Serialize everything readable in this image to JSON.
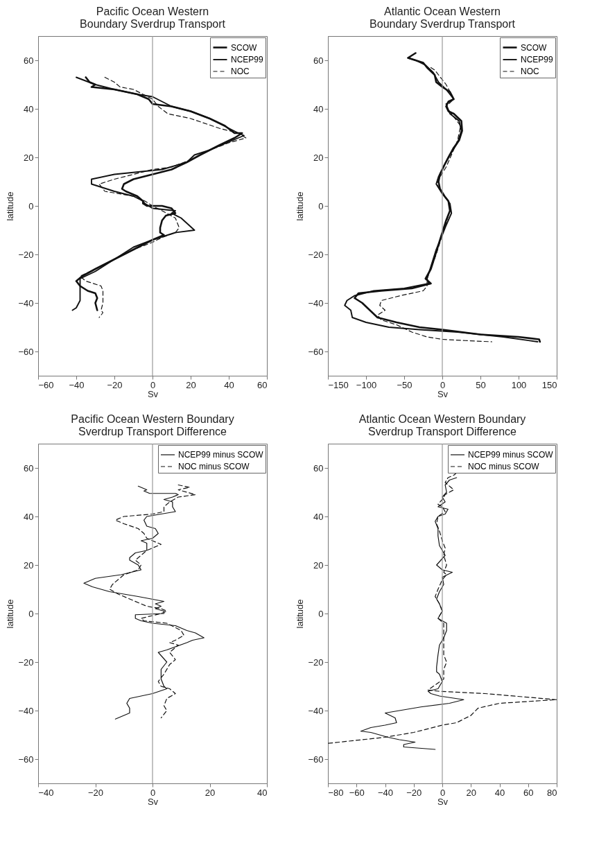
{
  "chart_data": [
    {
      "type": "line",
      "title": "Pacific Ocean Western\nBoundary Sverdrup Transport",
      "xlabel": "Sv",
      "ylabel": "latitude",
      "xlim": [
        -60,
        60
      ],
      "xticks": [
        -60,
        -40,
        -20,
        0,
        20,
        40,
        60
      ],
      "ylim": [
        -70,
        70
      ],
      "yticks": [
        -60,
        -40,
        -20,
        0,
        20,
        40,
        60
      ],
      "grid": false,
      "legend": "top right",
      "ref_lines": [
        {
          "axis": "x",
          "value": 0,
          "color": "#999999"
        }
      ],
      "series": [
        {
          "name": "SCOW",
          "color": "#111111",
          "line_style": "solid",
          "x": [
            -35,
            -33,
            -30,
            -32,
            -20,
            -8,
            -2,
            0,
            10,
            20,
            30,
            38,
            43,
            47,
            43,
            35,
            25,
            18,
            10,
            0,
            -10,
            -15,
            -16,
            -14,
            -8,
            -5,
            -5,
            -3,
            5,
            10,
            12,
            7,
            5,
            4,
            4,
            6,
            0,
            -10,
            -20,
            -30,
            -37,
            -40,
            -38,
            -34,
            -30,
            -29,
            -30,
            -29
          ],
          "values": [
            53,
            51,
            50,
            49,
            48,
            46,
            44,
            42,
            41,
            39,
            36,
            33,
            30,
            30,
            28,
            25,
            21,
            18,
            15,
            13,
            11,
            9,
            7,
            6,
            4,
            2,
            1,
            0,
            0,
            -1,
            -3,
            -4,
            -6,
            -9,
            -11,
            -12,
            -14,
            -18,
            -22,
            -26,
            -29,
            -31,
            -33,
            -35,
            -36,
            -38,
            -40,
            -43
          ]
        },
        {
          "name": "NCEP99",
          "color": "#111111",
          "line_style": "solid",
          "x": [
            -40,
            -30,
            -20,
            -8,
            0,
            5,
            10,
            20,
            30,
            40,
            45,
            48,
            42,
            30,
            22,
            18,
            5,
            -20,
            -32,
            -32,
            -28,
            -20,
            -10,
            -5,
            -4,
            0,
            12,
            10,
            15,
            22,
            12,
            0,
            -10,
            -20,
            -30,
            -38,
            -38,
            -38,
            -38,
            -40,
            -42
          ],
          "values": [
            53,
            50,
            48,
            46,
            45,
            43,
            41,
            39,
            36,
            32,
            30,
            29,
            27,
            23,
            21,
            18,
            15,
            13,
            11,
            9,
            8,
            6,
            4,
            2,
            1,
            -1,
            -2,
            -3,
            -5,
            -10,
            -11,
            -14,
            -17,
            -22,
            -27,
            -30,
            -33,
            -36,
            -39,
            -42,
            -43
          ]
        },
        {
          "name": "NOC",
          "color": "#111111",
          "line_style": "dashed",
          "x": [
            -25,
            -20,
            -17,
            -10,
            -5,
            0,
            3,
            8,
            20,
            35,
            45,
            49,
            40,
            30,
            20,
            10,
            0,
            -10,
            -20,
            -28,
            -25,
            -10,
            -4,
            0,
            5,
            12,
            14,
            12,
            5,
            0,
            -10,
            -20,
            -30,
            -38,
            -35,
            -27,
            -26,
            -26,
            -27,
            -26,
            -28
          ],
          "values": [
            53,
            51,
            49,
            48,
            46,
            44,
            41,
            38,
            36,
            32,
            30,
            28,
            26,
            23,
            19,
            16,
            15,
            13,
            11,
            9,
            6,
            4,
            2,
            0,
            -2,
            -5,
            -9,
            -11,
            -13,
            -15,
            -18,
            -22,
            -26,
            -29,
            -31,
            -33,
            -35,
            -40,
            -43,
            -44,
            -46
          ]
        }
      ]
    },
    {
      "type": "line",
      "title": "Atlantic Ocean Western\nBoundary Sverdrup Transport",
      "xlabel": "Sv",
      "ylabel": "latitude",
      "xlim": [
        -150,
        150
      ],
      "xticks": [
        -150,
        -100,
        -50,
        0,
        50,
        100,
        150
      ],
      "ylim": [
        -70,
        70
      ],
      "yticks": [
        -60,
        -40,
        -20,
        0,
        20,
        40,
        60
      ],
      "grid": false,
      "legend": "top right",
      "ref_lines": [
        {
          "axis": "x",
          "value": 0,
          "color": "#999999"
        }
      ],
      "series": [
        {
          "name": "SCOW",
          "color": "#111111",
          "line_style": "solid",
          "x": [
            -35,
            -40,
            -45,
            -35,
            -25,
            -20,
            -10,
            -8,
            0,
            10,
            15,
            8,
            5,
            8,
            15,
            25,
            26,
            22,
            15,
            8,
            3,
            -3,
            -5,
            -3,
            3,
            8,
            10,
            5,
            0,
            -5,
            -10,
            -15,
            -22,
            -15,
            -40,
            -80,
            -110,
            -115,
            -105,
            -95,
            -85,
            -60,
            -30,
            0,
            50,
            100,
            127,
            128
          ],
          "values": [
            63,
            62,
            61,
            60,
            59,
            57,
            54,
            51,
            49,
            47,
            44,
            43,
            41,
            39,
            38,
            35,
            31,
            27,
            24,
            20,
            17,
            13,
            10,
            7,
            4,
            2,
            -2,
            -6,
            -11,
            -16,
            -21,
            -26,
            -30,
            -32,
            -34,
            -35,
            -36,
            -38,
            -40,
            -43,
            -46,
            -48,
            -50,
            -51,
            -53,
            -54,
            -55,
            -56
          ]
        },
        {
          "name": "NCEP99",
          "color": "#111111",
          "line_style": "solid",
          "x": [
            -45,
            -35,
            -22,
            -12,
            -5,
            5,
            15,
            5,
            10,
            22,
            25,
            20,
            10,
            3,
            -5,
            -8,
            0,
            10,
            12,
            5,
            0,
            -8,
            -15,
            -20,
            -18,
            -50,
            -90,
            -115,
            -125,
            -128,
            -120,
            -118,
            -100,
            -70,
            -30,
            20,
            80,
            125
          ],
          "values": [
            61,
            60,
            58,
            55,
            51,
            48,
            44,
            42,
            38,
            35,
            31,
            26,
            21,
            17,
            12,
            9,
            5,
            1,
            -3,
            -8,
            -12,
            -18,
            -25,
            -30,
            -32,
            -34,
            -35,
            -37,
            -39,
            -41,
            -43,
            -46,
            -48,
            -50,
            -51,
            -52,
            -54,
            -56
          ]
        },
        {
          "name": "NOC",
          "color": "#111111",
          "line_style": "dashed",
          "x": [
            -15,
            -10,
            -5,
            5,
            12,
            15,
            5,
            12,
            24,
            20,
            12,
            5,
            -3,
            -7,
            0,
            8,
            10,
            5,
            0,
            -8,
            -20,
            -20,
            -25,
            -55,
            -80,
            -82,
            -75,
            -85,
            -80,
            -60,
            -40,
            -20,
            0,
            30,
            65
          ],
          "values": [
            57,
            56,
            54,
            50,
            46,
            44,
            41,
            38,
            33,
            27,
            21,
            16,
            12,
            9,
            5,
            2,
            -2,
            -7,
            -12,
            -20,
            -30,
            -33,
            -35,
            -37,
            -39,
            -41,
            -43,
            -45,
            -47,
            -49,
            -52,
            -54,
            -55,
            -55.5,
            -56
          ]
        }
      ]
    },
    {
      "type": "line",
      "title": "Pacific Ocean Western Boundary\nSverdrup Transport Difference",
      "xlabel": "Sv",
      "ylabel": "latitude",
      "xlim": [
        -40,
        40
      ],
      "xticks": [
        -40,
        -20,
        0,
        20,
        40
      ],
      "ylim": [
        -70,
        70
      ],
      "yticks": [
        -60,
        -40,
        -20,
        0,
        20,
        40,
        60
      ],
      "grid": false,
      "legend": "top right",
      "ref_lines": [
        {
          "axis": "x",
          "value": 0,
          "color": "#999999"
        }
      ],
      "series": [
        {
          "name": "NCEP99 minus SCOW",
          "color": "#111111",
          "line_style": "solid",
          "x": [
            -5,
            -2,
            -3,
            -1,
            8,
            9,
            7,
            4,
            7,
            7,
            8,
            3,
            -2,
            -3,
            -2,
            1,
            2,
            0,
            -4,
            -2,
            -2,
            -6,
            -8,
            -8,
            -5,
            -4,
            -11,
            -20,
            -24,
            -21,
            -15,
            -5,
            4,
            1,
            3,
            1,
            4,
            4,
            -6,
            -6,
            -4,
            0,
            8,
            12,
            15,
            18,
            14,
            12,
            5,
            2,
            5,
            3,
            3,
            4,
            5,
            0,
            -8,
            -9,
            -8,
            -8,
            -10,
            -13
          ],
          "values": [
            52.5,
            51,
            50.5,
            49.5,
            49.5,
            49,
            48,
            47,
            46,
            44,
            42,
            41,
            40,
            38.5,
            36,
            35,
            33,
            31,
            30,
            29,
            26,
            25,
            23,
            22,
            20,
            18,
            16,
            14.5,
            12.5,
            11,
            9,
            7,
            5,
            4,
            3,
            2,
            1,
            0,
            -0.5,
            -2,
            -3,
            -4,
            -5,
            -7,
            -8,
            -10,
            -11,
            -12,
            -15,
            -16,
            -20,
            -23,
            -27,
            -30,
            -31,
            -33,
            -35,
            -37,
            -39,
            -41,
            -42,
            -43.5
          ]
        },
        {
          "name": "NOC minus SCOW",
          "color": "#111111",
          "line_style": "dashed",
          "x": [
            9,
            13,
            9,
            15,
            9,
            6,
            4,
            4,
            0,
            -10,
            -13,
            -10,
            -5,
            -3,
            -2,
            0,
            2,
            3,
            0,
            -2,
            -4,
            -6,
            -4,
            -5,
            -10,
            -14,
            -15,
            -12,
            -8,
            -4,
            -2,
            3,
            5,
            3,
            -4,
            -3,
            5,
            10,
            11,
            8,
            6,
            9,
            6,
            8,
            6,
            4,
            2,
            3,
            6,
            8,
            5,
            4,
            5,
            3
          ],
          "values": [
            53,
            52,
            51,
            49,
            48,
            46,
            44,
            42,
            41,
            40,
            38.5,
            37,
            35,
            33,
            31,
            30,
            29,
            28.5,
            27,
            26,
            24,
            22,
            20,
            18,
            16,
            12,
            10,
            8,
            6,
            4,
            3,
            2,
            1,
            0,
            -2,
            -3,
            -4,
            -7,
            -9,
            -11,
            -12,
            -13,
            -16,
            -19,
            -21,
            -25,
            -28,
            -30,
            -31,
            -33,
            -35,
            -38,
            -40,
            -43
          ]
        }
      ]
    },
    {
      "type": "line",
      "title": "Atlantic Ocean Western Boundary\nSverdrup Transport Difference",
      "xlabel": "Sv",
      "ylabel": "latitude",
      "xlim": [
        -80,
        80
      ],
      "xticks": [
        -80,
        -60,
        -40,
        -20,
        0,
        20,
        40,
        60,
        80
      ],
      "ylim": [
        -70,
        70
      ],
      "yticks": [
        -60,
        -40,
        -20,
        0,
        20,
        40,
        60
      ],
      "grid": false,
      "legend": "top right",
      "ref_lines": [
        {
          "axis": "x",
          "value": 0,
          "color": "#999999"
        }
      ],
      "series": [
        {
          "name": "NCEP99 minus SCOW",
          "color": "#111111",
          "line_style": "solid",
          "x": [
            10,
            5,
            2,
            3,
            0,
            2,
            -3,
            4,
            2,
            -3,
            -5,
            -3,
            -3,
            -2,
            0,
            2,
            -4,
            0,
            7,
            0,
            1,
            -2,
            -4,
            -2,
            0,
            -3,
            0,
            3,
            3,
            1,
            -2,
            -3,
            -4,
            -4,
            -2,
            0,
            -3,
            -10,
            -8,
            -2,
            15,
            5,
            -15,
            -40,
            -33,
            -32,
            -40,
            -50,
            -57,
            -50,
            -38,
            -30,
            -19,
            -27,
            -27,
            -5
          ],
          "values": [
            56,
            55,
            53,
            50,
            48,
            46,
            44,
            43,
            41,
            40,
            38,
            35,
            32,
            28,
            26,
            24,
            20,
            18,
            17,
            15,
            12,
            9,
            6,
            4,
            1,
            -2,
            -3,
            -4,
            -7,
            -10,
            -13,
            -17,
            -22,
            -24,
            -25,
            -28,
            -31,
            -32,
            -33,
            -34,
            -35.5,
            -37,
            -38.5,
            -41,
            -43,
            -45,
            -46,
            -47,
            -48.5,
            -49,
            -51,
            -52,
            -53,
            -54,
            -55,
            -56
          ]
        },
        {
          "name": "NOC minus SCOW",
          "color": "#111111",
          "line_style": "dashed",
          "x": [
            10,
            8,
            4,
            2,
            6,
            8,
            2,
            0,
            -3,
            0,
            2,
            -3,
            -4,
            -2,
            0,
            2,
            1,
            2,
            3,
            1,
            3,
            0,
            -3,
            -5,
            -2,
            0,
            -3,
            1,
            1,
            1,
            3,
            1,
            1,
            -10,
            -3,
            30,
            80,
            40,
            25,
            20,
            10,
            0,
            -20,
            -40,
            -80
          ],
          "values": [
            58,
            57,
            56,
            54,
            52,
            51,
            49,
            47,
            45,
            44,
            42,
            40,
            37,
            34,
            30,
            27,
            24,
            22,
            20,
            17,
            16,
            14,
            10,
            7,
            4,
            1,
            -2,
            -4,
            -10,
            -17,
            -20,
            -23,
            -27,
            -31.5,
            -32,
            -33,
            -35.5,
            -37,
            -39,
            -42,
            -45,
            -46,
            -49,
            -51,
            -53.5
          ]
        }
      ]
    }
  ]
}
